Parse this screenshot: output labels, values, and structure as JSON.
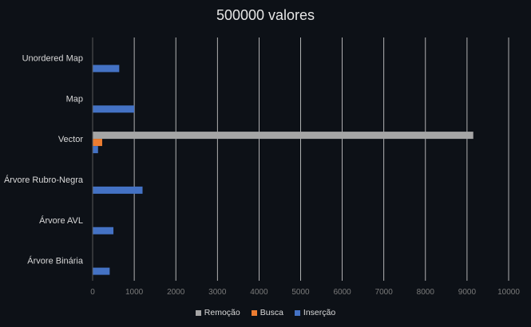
{
  "chart_data": {
    "type": "bar",
    "orientation": "horizontal",
    "title": "500000 valores",
    "categories": [
      "Unordered Map",
      "Map",
      "Vector",
      "Árvore Rubro-Negra",
      "Árvore AVL",
      "Árvore Binária"
    ],
    "series": [
      {
        "name": "Remoção",
        "color": "#a5a5a5",
        "values": [
          0,
          0,
          9150,
          0,
          0,
          0
        ]
      },
      {
        "name": "Busca",
        "color": "#ed7d31",
        "values": [
          0,
          0,
          230,
          0,
          0,
          0
        ]
      },
      {
        "name": "Inserção",
        "color": "#4472c4",
        "values": [
          640,
          1000,
          130,
          1200,
          500,
          410
        ]
      }
    ],
    "xlim": [
      0,
      10000
    ],
    "x_ticks": [
      0,
      1000,
      2000,
      3000,
      4000,
      5000,
      6000,
      7000,
      8000,
      9000,
      10000
    ],
    "grid": "vertical",
    "legend_position": "bottom"
  }
}
